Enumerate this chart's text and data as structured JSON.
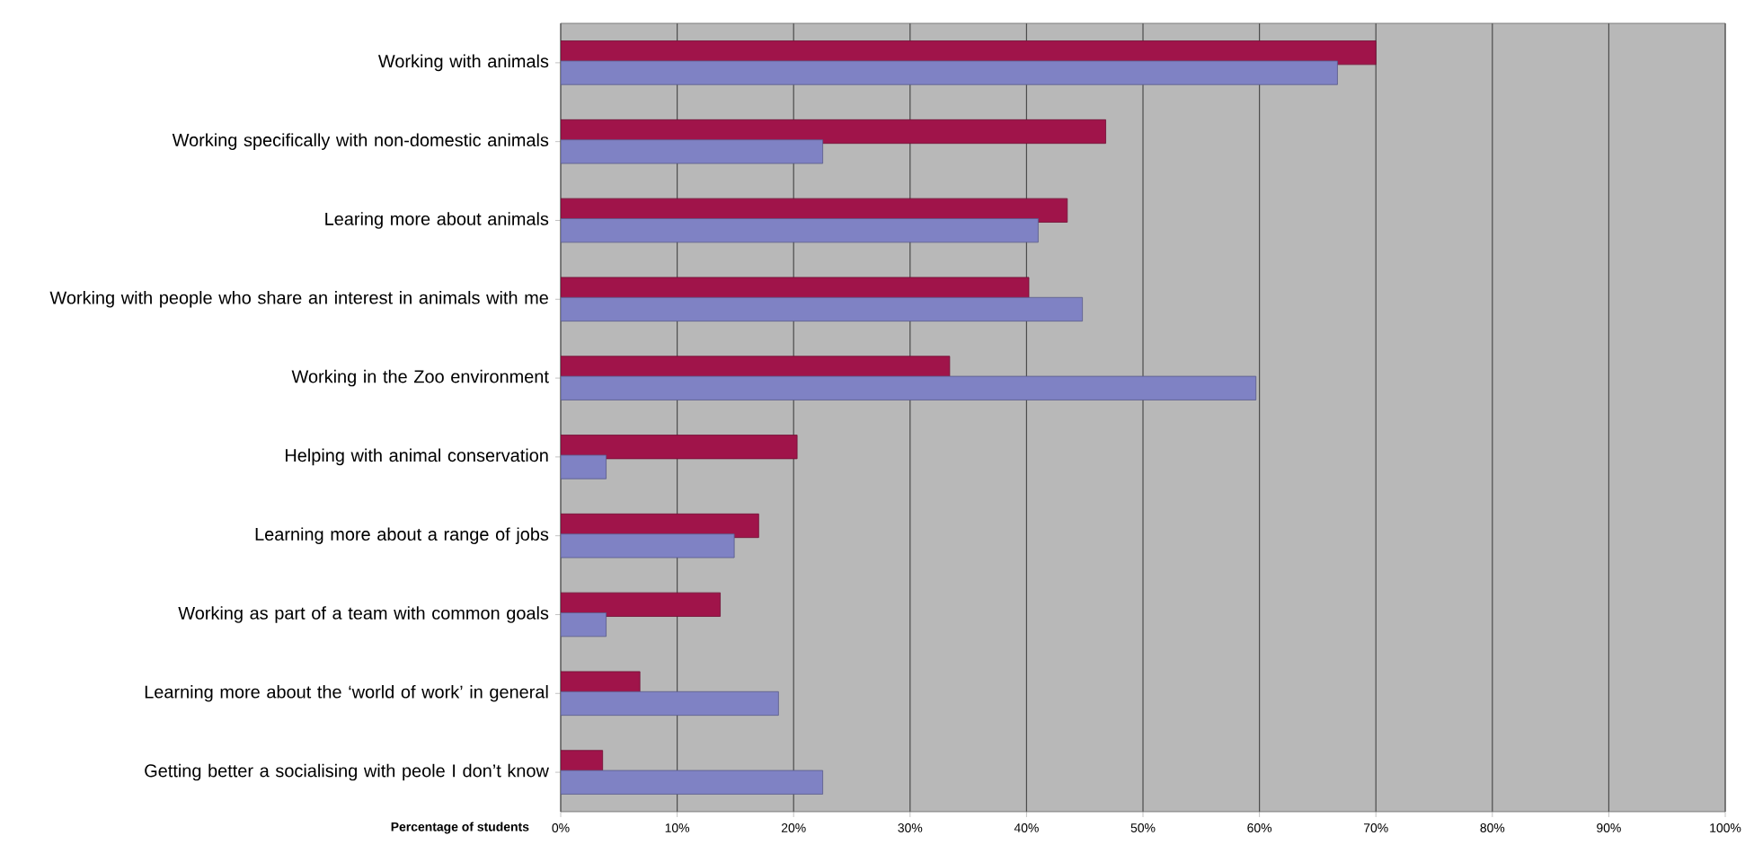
{
  "chart_data": {
    "type": "bar",
    "orientation": "horizontal",
    "xlabel": "Percentage of students",
    "categories": [
      "Working with animals",
      "Working specifically with non-domestic animals",
      "Learing more about animals",
      "Working with people who share an interest in animals with me",
      "Working in the Zoo environment",
      "Helping with animal conservation",
      "Learning more about a range of jobs",
      "Working as part of a team with common goals",
      "Learning more about the ‘world of work’ in general",
      "Getting better a socialising with peole I don’t know"
    ],
    "series": [
      {
        "color": "#a0144a",
        "values": [
          70.0,
          46.8,
          43.5,
          40.2,
          33.4,
          20.3,
          17.0,
          13.7,
          6.8,
          3.6
        ]
      },
      {
        "color": "#7f82c4",
        "values": [
          66.7,
          22.5,
          41.0,
          44.8,
          59.7,
          3.9,
          14.9,
          3.9,
          18.7,
          22.5
        ]
      }
    ],
    "xlim": [
      0,
      100
    ],
    "xticks": [
      {
        "value": 0,
        "label": "0%"
      },
      {
        "value": 10,
        "label": "10%"
      },
      {
        "value": 20,
        "label": "20%"
      },
      {
        "value": 30,
        "label": "30%"
      },
      {
        "value": 40,
        "label": "40%"
      },
      {
        "value": 50,
        "label": "50%"
      },
      {
        "value": 60,
        "label": "60%"
      },
      {
        "value": 70,
        "label": "70%"
      },
      {
        "value": 80,
        "label": "80%"
      },
      {
        "value": 90,
        "label": "90%"
      },
      {
        "value": 100,
        "label": "100%"
      }
    ],
    "grid": "x"
  }
}
